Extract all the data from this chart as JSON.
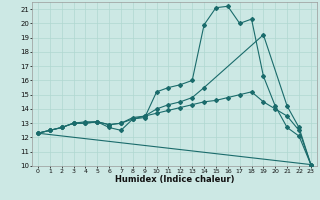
{
  "title": "",
  "xlabel": "Humidex (Indice chaleur)",
  "bg_color": "#cce8e4",
  "grid_color": "#b0d8d0",
  "line_color": "#1a6b6b",
  "xlim": [
    -0.5,
    23.5
  ],
  "ylim": [
    10,
    21.5
  ],
  "xticks": [
    0,
    1,
    2,
    3,
    4,
    5,
    6,
    7,
    8,
    9,
    10,
    11,
    12,
    13,
    14,
    15,
    16,
    17,
    18,
    19,
    20,
    21,
    22,
    23
  ],
  "yticks": [
    10,
    11,
    12,
    13,
    14,
    15,
    16,
    17,
    18,
    19,
    20,
    21
  ],
  "line1_x": [
    0,
    1,
    2,
    3,
    4,
    5,
    6,
    7,
    8,
    9,
    10,
    11,
    12,
    13,
    14,
    15,
    16,
    17,
    18,
    19,
    20,
    21,
    22,
    23
  ],
  "line1_y": [
    12.3,
    12.5,
    12.7,
    13.0,
    13.1,
    13.1,
    12.7,
    12.5,
    13.3,
    13.4,
    15.2,
    15.5,
    15.7,
    16.0,
    19.9,
    21.1,
    21.2,
    20.0,
    20.3,
    16.3,
    14.2,
    12.7,
    12.1,
    10.1
  ],
  "line2_x": [
    0,
    1,
    2,
    3,
    4,
    5,
    6,
    7,
    8,
    9,
    10,
    11,
    12,
    13,
    14,
    19,
    21,
    22,
    23
  ],
  "line2_y": [
    12.3,
    12.5,
    12.7,
    13.0,
    13.0,
    13.1,
    12.9,
    13.0,
    13.4,
    13.5,
    14.0,
    14.3,
    14.5,
    14.8,
    15.5,
    19.2,
    14.2,
    12.7,
    10.1
  ],
  "line3_x": [
    0,
    1,
    2,
    3,
    4,
    5,
    6,
    7,
    8,
    9,
    10,
    11,
    12,
    13,
    14,
    15,
    16,
    17,
    18,
    19,
    20,
    21,
    22,
    23
  ],
  "line3_y": [
    12.3,
    12.5,
    12.7,
    13.0,
    13.0,
    13.1,
    12.9,
    13.0,
    13.3,
    13.5,
    13.7,
    13.9,
    14.1,
    14.3,
    14.5,
    14.6,
    14.8,
    15.0,
    15.2,
    14.5,
    14.0,
    13.5,
    12.5,
    10.1
  ],
  "line4_x": [
    0,
    23
  ],
  "line4_y": [
    12.3,
    10.1
  ]
}
